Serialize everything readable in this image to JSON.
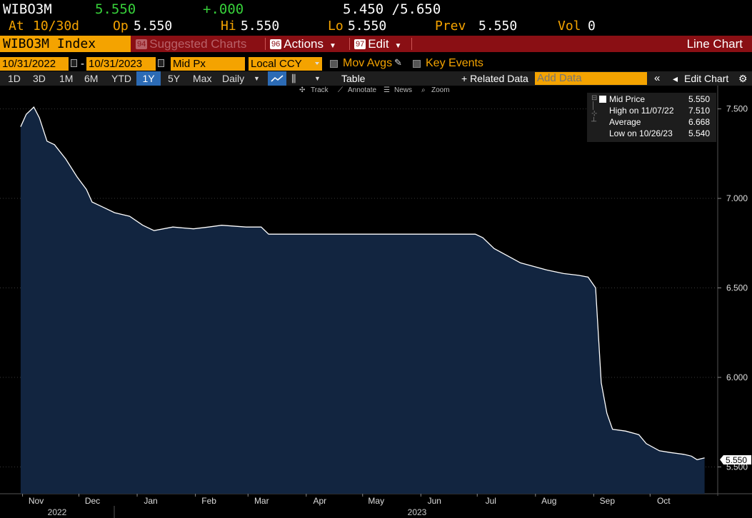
{
  "quote": {
    "ticker": "WIBO3M",
    "last": "5.550",
    "change": "+.000",
    "bid_ask": "5.450 /5.650",
    "at_label": "At",
    "at_value": "10/30d",
    "open_label": "Op",
    "open_value": "5.550",
    "high_label": "Hi",
    "high_value": "5.550",
    "low_label": "Lo",
    "low_value": "5.550",
    "prev_label": "Prev",
    "prev_value": "5.550",
    "vol_label": "Vol",
    "vol_value": "0"
  },
  "titlebar": {
    "security": "WIBO3M Index",
    "suggested_num": "94",
    "suggested": "Suggested Charts",
    "actions_num": "96",
    "actions": "Actions",
    "edit_num": "97",
    "edit": "Edit",
    "chart_type": "Line Chart"
  },
  "inputs": {
    "start_date": "10/31/2022",
    "dash": "-",
    "end_date": "10/31/2023",
    "field": "Mid Px",
    "currency": "Local CCY",
    "mov_avgs": "Mov Avgs",
    "key_events": "Key Events"
  },
  "toolbar": {
    "periods": [
      "1D",
      "3D",
      "1M",
      "6M",
      "YTD",
      "1Y",
      "5Y",
      "Max"
    ],
    "selected_period": "1Y",
    "frequency": "Daily",
    "table": "Table",
    "related_data": "+ Related Data",
    "add_data_placeholder": "Add Data",
    "edit_chart": "Edit Chart"
  },
  "chart_tools": [
    "Track",
    "Annotate",
    "News",
    "Zoom"
  ],
  "legend": {
    "mid_label": "Mid Price",
    "mid_value": "5.550",
    "high_label": "High on 11/07/22",
    "high_value": "7.510",
    "avg_label": "Average",
    "avg_value": "6.668",
    "low_label": "Low on 10/26/23",
    "low_value": "5.540"
  },
  "colors": {
    "accent": "#f4a300",
    "titlebar": "#8a0f14",
    "area_fill": "#122540",
    "up": "#37d03a"
  },
  "chart_data": {
    "type": "area",
    "series": [
      {
        "name": "Mid Price",
        "points": [
          [
            "2022-10-31",
            7.4
          ],
          [
            "2022-11-03",
            7.47
          ],
          [
            "2022-11-07",
            7.51
          ],
          [
            "2022-11-10",
            7.45
          ],
          [
            "2022-11-14",
            7.32
          ],
          [
            "2022-11-18",
            7.3
          ],
          [
            "2022-11-24",
            7.22
          ],
          [
            "2022-11-30",
            7.12
          ],
          [
            "2022-12-05",
            7.05
          ],
          [
            "2022-12-08",
            6.98
          ],
          [
            "2022-12-14",
            6.95
          ],
          [
            "2022-12-20",
            6.92
          ],
          [
            "2022-12-28",
            6.9
          ],
          [
            "2023-01-04",
            6.85
          ],
          [
            "2023-01-10",
            6.82
          ],
          [
            "2023-01-20",
            6.84
          ],
          [
            "2023-01-31",
            6.83
          ],
          [
            "2023-02-08",
            6.84
          ],
          [
            "2023-02-15",
            6.85
          ],
          [
            "2023-02-28",
            6.84
          ],
          [
            "2023-03-08",
            6.84
          ],
          [
            "2023-03-12",
            6.8
          ],
          [
            "2023-03-31",
            6.8
          ],
          [
            "2023-04-30",
            6.8
          ],
          [
            "2023-05-31",
            6.8
          ],
          [
            "2023-06-30",
            6.8
          ],
          [
            "2023-07-04",
            6.78
          ],
          [
            "2023-07-10",
            6.72
          ],
          [
            "2023-07-17",
            6.68
          ],
          [
            "2023-07-24",
            6.64
          ],
          [
            "2023-07-31",
            6.62
          ],
          [
            "2023-08-07",
            6.6
          ],
          [
            "2023-08-16",
            6.58
          ],
          [
            "2023-08-24",
            6.57
          ],
          [
            "2023-08-29",
            6.56
          ],
          [
            "2023-09-02",
            6.5
          ],
          [
            "2023-09-05",
            5.97
          ],
          [
            "2023-09-08",
            5.8
          ],
          [
            "2023-09-11",
            5.71
          ],
          [
            "2023-09-18",
            5.7
          ],
          [
            "2023-09-25",
            5.68
          ],
          [
            "2023-09-29",
            5.63
          ],
          [
            "2023-10-06",
            5.59
          ],
          [
            "2023-10-12",
            5.58
          ],
          [
            "2023-10-19",
            5.57
          ],
          [
            "2023-10-23",
            5.56
          ],
          [
            "2023-10-26",
            5.54
          ],
          [
            "2023-10-30",
            5.55
          ]
        ]
      }
    ],
    "x_range": [
      "2022-10-20",
      "2023-11-06"
    ],
    "ylim": [
      5.35,
      7.63
    ],
    "y_ticks": [
      5.5,
      6.0,
      6.5,
      7.0,
      7.5
    ],
    "y_tick_labels": [
      "5.500",
      "6.000",
      "6.500",
      "7.000",
      "7.500"
    ],
    "x_tick_labels": [
      "Nov",
      "Dec",
      "Jan",
      "Feb",
      "Mar",
      "Apr",
      "May",
      "Jun",
      "Jul",
      "Aug",
      "Sep",
      "Oct"
    ],
    "x_tick_dates": [
      "2022-11-01",
      "2022-12-01",
      "2023-01-01",
      "2023-02-01",
      "2023-03-01",
      "2023-04-01",
      "2023-05-01",
      "2023-06-01",
      "2023-07-01",
      "2023-08-01",
      "2023-09-01",
      "2023-10-01"
    ],
    "year_labels": [
      "2022",
      "2023"
    ],
    "last_value_label": "5.550",
    "grid": true,
    "legend_position": "top-right"
  }
}
